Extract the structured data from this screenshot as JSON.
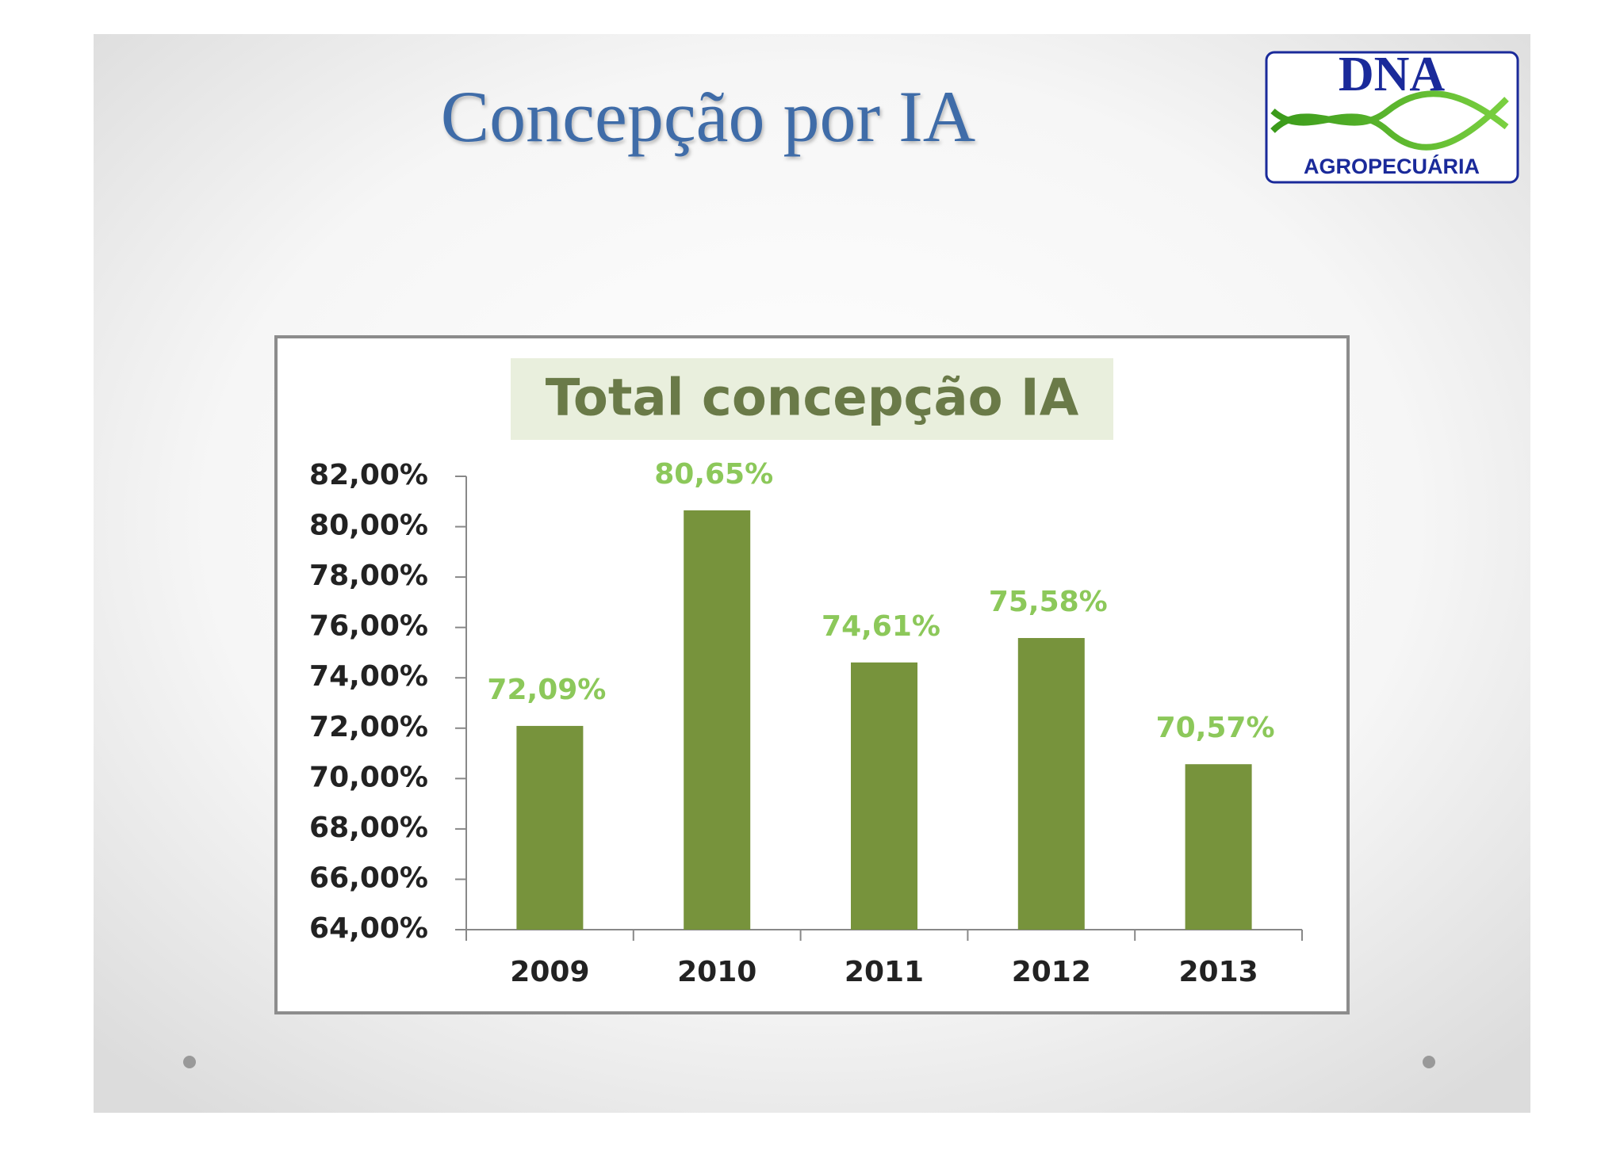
{
  "slide_title": "Concepção por IA",
  "logo": {
    "name": "DNA",
    "subtitle": "AGROPECUÁRIA"
  },
  "chart_data": {
    "type": "bar",
    "title": "Total concepção IA",
    "categories": [
      "2009",
      "2010",
      "2011",
      "2012",
      "2013"
    ],
    "values": [
      72.09,
      80.65,
      74.61,
      75.58,
      70.57
    ],
    "value_labels": [
      "72,09%",
      "80,65%",
      "74,61%",
      "75,58%",
      "70,57%"
    ],
    "color": "#77933c",
    "label_color": "#8cc85a",
    "ylim": [
      64,
      82
    ],
    "yticks": [
      {
        "value": 64,
        "label": "64,00%"
      },
      {
        "value": 66,
        "label": "66,00%"
      },
      {
        "value": 68,
        "label": "68,00%"
      },
      {
        "value": 70,
        "label": "70,00%"
      },
      {
        "value": 72,
        "label": "72,00%"
      },
      {
        "value": 74,
        "label": "74,00%"
      },
      {
        "value": 76,
        "label": "76,00%"
      },
      {
        "value": 78,
        "label": "78,00%"
      },
      {
        "value": 80,
        "label": "80,00%"
      },
      {
        "value": 82,
        "label": "82,00%"
      }
    ],
    "grid": false
  }
}
